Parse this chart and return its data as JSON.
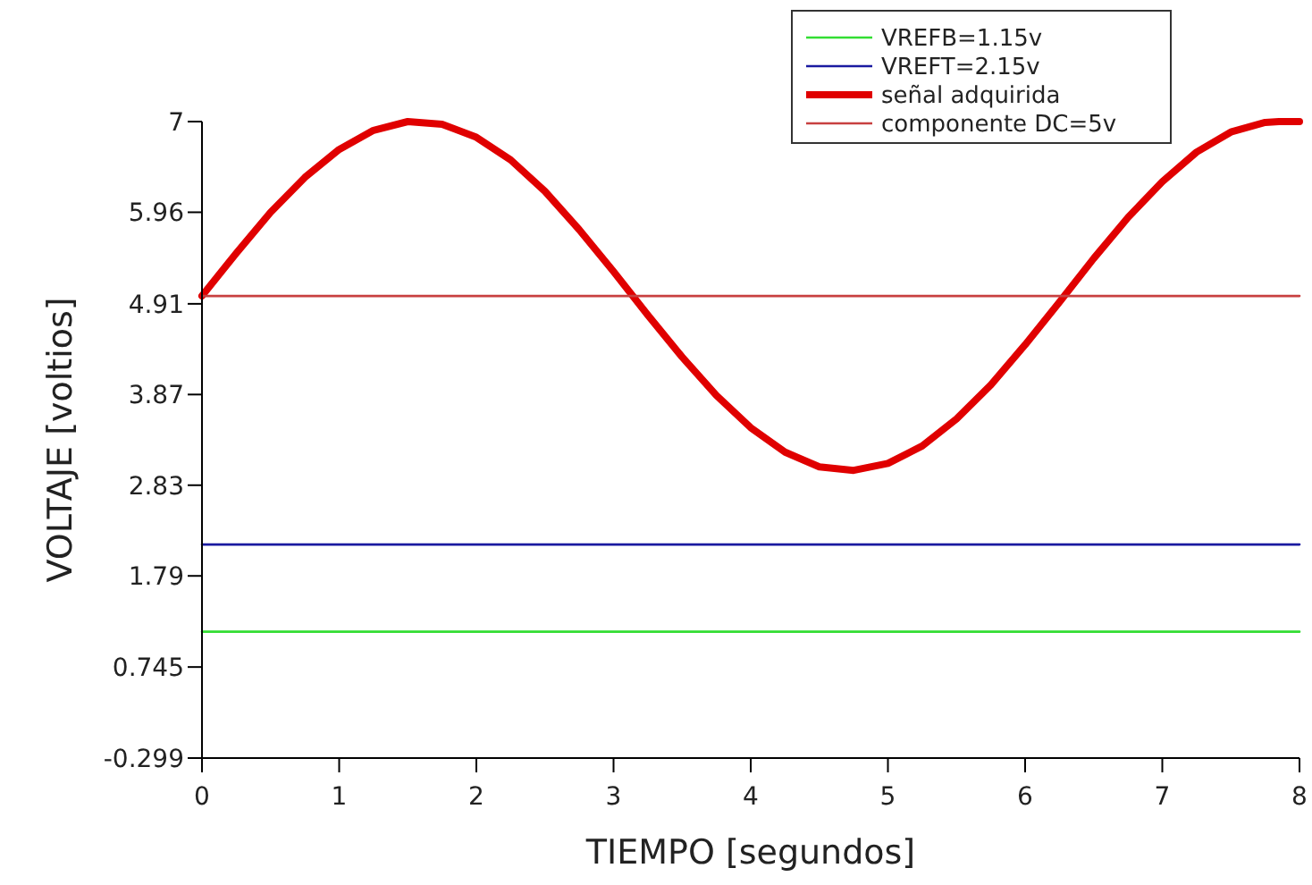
{
  "chart_data": {
    "type": "line",
    "xlabel": "TIEMPO [segundos]",
    "ylabel": "VOLTAJE [voltios]",
    "xlim": [
      0,
      8
    ],
    "xticks": [
      0,
      1,
      2,
      3,
      4,
      5,
      6,
      7,
      8
    ],
    "ylim": [
      -0.299,
      7
    ],
    "yticks": [
      -0.299,
      0.745,
      1.79,
      2.83,
      3.87,
      4.91,
      5.96,
      7
    ],
    "grid": false,
    "legend": "top right",
    "marker": "none",
    "line_style": "solid",
    "series": [
      {
        "name": "VREFB=1.15v",
        "color": "#33dd33",
        "x": [
          0,
          8
        ],
        "values": [
          1.15,
          1.15
        ]
      },
      {
        "name": "VREFT=2.15v",
        "color": "#1a1aa0",
        "x": [
          0,
          8
        ],
        "values": [
          2.15,
          2.15
        ]
      },
      {
        "name": "señal adquirida",
        "color": "#e00000",
        "x": [
          0,
          0.25,
          0.5,
          0.75,
          1,
          1.25,
          1.5,
          1.75,
          2,
          2.25,
          2.5,
          2.75,
          3,
          3.25,
          3.5,
          3.75,
          4,
          4.25,
          4.5,
          4.75,
          5,
          5.25,
          5.5,
          5.75,
          6,
          6.25,
          6.5,
          6.75,
          7,
          7.25,
          7.5,
          7.75,
          7.85,
          8
        ],
        "values": [
          5.0,
          5.49,
          5.96,
          6.36,
          6.68,
          6.9,
          7.0,
          6.97,
          6.82,
          6.56,
          6.2,
          5.76,
          5.28,
          4.78,
          4.3,
          3.86,
          3.49,
          3.21,
          3.04,
          3.0,
          3.08,
          3.28,
          3.59,
          3.98,
          4.44,
          4.93,
          5.43,
          5.9,
          6.31,
          6.65,
          6.88,
          6.99,
          7.0,
          7.0
        ]
      },
      {
        "name": "componente DC=5v",
        "color": "#c84040",
        "x": [
          0,
          8
        ],
        "values": [
          5,
          5
        ]
      }
    ]
  }
}
